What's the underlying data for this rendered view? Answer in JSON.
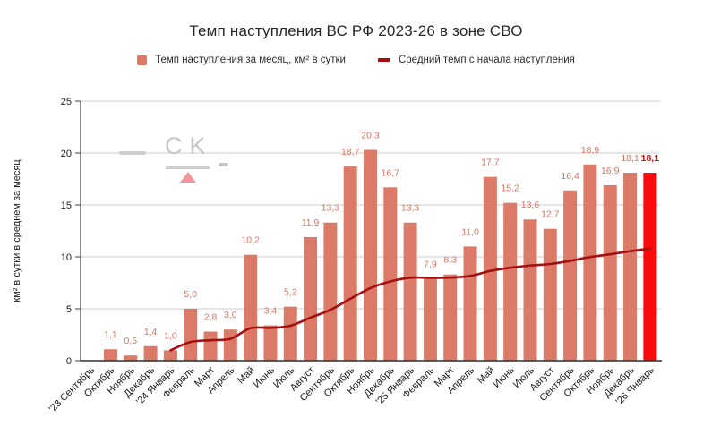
{
  "title": "Темп наступления ВС РФ 2023-26 в зоне СВО",
  "legend": {
    "bars_label": "Темп наступления за месяц, км² в сутки",
    "line_label": "Средний темп с начала наступления"
  },
  "y_axis": {
    "title": "км² в сутки в среднем за месяц"
  },
  "watermark": {
    "letters": "CK"
  },
  "chart_data": {
    "type": "bar",
    "title": "Темп наступления ВС РФ 2023-26 в зоне СВО",
    "xlabel": "",
    "ylabel": "км² в сутки в среднем за месяц",
    "ylim": [
      0,
      25
    ],
    "y_ticks": [
      0,
      5,
      10,
      15,
      20,
      25
    ],
    "grid": true,
    "legend_position": "top",
    "categories": [
      "'23 Сентябрь",
      "Октябрь",
      "Ноябрь",
      "Декабрь",
      "'24 Январь",
      "Февраль",
      "Март",
      "Апрель",
      "Май",
      "Июнь",
      "Июль",
      "Август",
      "Сентябрь",
      "Октябрь",
      "Ноябрь",
      "Декабрь",
      "'25 Январь",
      "Февраль",
      "Март",
      "Апрель",
      "Май",
      "Июнь",
      "Июль",
      "Август",
      "Сентябрь",
      "Октябрь",
      "Ноябрь",
      "Декабрь",
      "'26 Январь"
    ],
    "series": [
      {
        "name": "Темп наступления за месяц, км² в сутки",
        "type": "bar",
        "values": [
          null,
          1.1,
          0.5,
          1.4,
          1.0,
          5.0,
          2.8,
          3.0,
          10.2,
          3.4,
          5.2,
          11.9,
          13.3,
          18.7,
          20.3,
          16.7,
          13.3,
          7.9,
          8.3,
          11.0,
          17.7,
          15.2,
          13.6,
          12.7,
          16.4,
          18.9,
          16.9,
          18.1,
          18.1
        ]
      },
      {
        "name": "Средний темп с начала наступления",
        "type": "line",
        "values": [
          null,
          null,
          null,
          null,
          1.0,
          1.8,
          1.97,
          2.11,
          3.13,
          3.16,
          3.36,
          4.14,
          4.9,
          5.96,
          6.99,
          7.63,
          7.99,
          7.98,
          8.0,
          8.16,
          8.64,
          8.95,
          9.16,
          9.31,
          9.61,
          9.98,
          10.25,
          10.54,
          10.81
        ]
      }
    ],
    "highlight_index": 28,
    "colors": {
      "bar": "#DB7A67",
      "bar_highlight": "#FA0A0A",
      "line": "#A50F0F",
      "grid": "#CCCCCC",
      "axis": "#3d3d3d",
      "label": "#D97663",
      "label_highlight": "#E60505",
      "tick_text": "#1c1c1c"
    }
  }
}
